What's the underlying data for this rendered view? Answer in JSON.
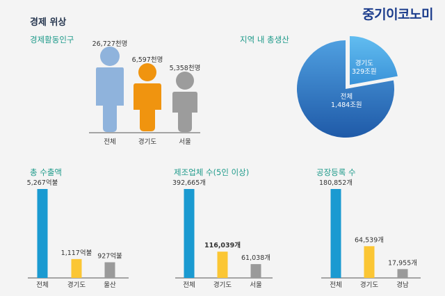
{
  "page_title": "경제 위상",
  "brand": "중기이코노미",
  "colors": {
    "title": "#26364f",
    "section": "#1e9a8a",
    "brand": "#1b3c8c",
    "primary_bar": "#1a9ad1",
    "secondary_bar": "#fbc634",
    "tertiary_bar": "#9a9a9a",
    "person_total": "#8fb3dc",
    "person_gyeonggi": "#f0940f",
    "person_seoul": "#9c9c9c",
    "pie_total": "#2f6fc0",
    "pie_gyeonggi": "#4aa5e0"
  },
  "chart_data": [
    {
      "id": "population",
      "type": "bar",
      "title": "경제활동인구",
      "categories": [
        "전체",
        "경기도",
        "서울"
      ],
      "values": [
        26727,
        6597,
        5358
      ],
      "value_labels": [
        "26,727천명",
        "6,597천명",
        "5,358천명"
      ],
      "unit": "천명",
      "icon": "person-icon"
    },
    {
      "id": "gdp",
      "type": "pie",
      "title": "지역 내 총생산",
      "slices": [
        {
          "label": "전체",
          "value": 1484,
          "value_label": "1,484조원"
        },
        {
          "label": "경기도",
          "value": 329,
          "value_label": "329조원"
        }
      ],
      "unit": "조원"
    },
    {
      "id": "exports",
      "type": "bar",
      "title": "총 수출액",
      "categories": [
        "전체",
        "경기도",
        "울산"
      ],
      "values": [
        5267,
        1117,
        927
      ],
      "value_labels": [
        "5,267억불",
        "1,117억불",
        "927억불"
      ],
      "unit": "억불"
    },
    {
      "id": "manufacturers",
      "type": "bar",
      "title": "제조업체 수(5인 이상)",
      "categories": [
        "전체",
        "경기도",
        "서울"
      ],
      "values": [
        392665,
        116039,
        61038
      ],
      "value_labels": [
        "392,665개",
        "116,039개",
        "61,038개"
      ],
      "unit": "개"
    },
    {
      "id": "factories",
      "type": "bar",
      "title": "공장등록 수",
      "categories": [
        "전체",
        "경기도",
        "경남"
      ],
      "values": [
        180852,
        64539,
        17955
      ],
      "value_labels": [
        "180,852개",
        "64,539개",
        "17,955개"
      ],
      "unit": "개"
    }
  ]
}
